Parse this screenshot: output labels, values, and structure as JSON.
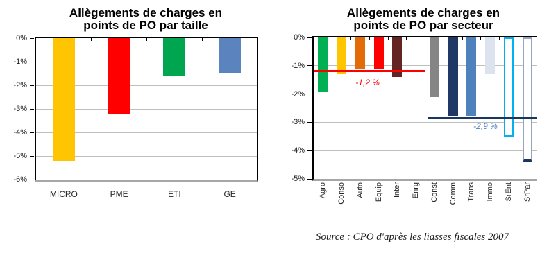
{
  "chart_data": [
    {
      "id": "par-taille",
      "type": "bar",
      "title": "Allègements de charges en points de PO par taille",
      "title_lines": [
        "Allègements de charges en",
        "points de PO par taille"
      ],
      "categories": [
        "MICRO",
        "PME",
        "ETI",
        "GE"
      ],
      "values": [
        -5.2,
        -3.2,
        -1.6,
        -1.5
      ],
      "bar_colors": [
        "#FFC500",
        "#FF0000",
        "#00A550",
        "#5B84BE"
      ],
      "bar_border_colors": [
        null,
        null,
        null,
        null
      ],
      "bar_border_bottom_colors": [
        null,
        null,
        null,
        null
      ],
      "ylim": [
        0,
        -6
      ],
      "ytick_labels": [
        "0%",
        "-1%",
        "-2%",
        "-3%",
        "-4%",
        "-5%",
        "-6%"
      ],
      "xlabel": "",
      "ylabel": "",
      "grid": true,
      "legend": false,
      "ref_lines": []
    },
    {
      "id": "par-secteur",
      "type": "bar",
      "title": "Allègements de charges en points de PO par secteur",
      "title_lines": [
        "Allègements de charges en",
        "points de PO par secteur"
      ],
      "categories": [
        "Agro",
        "Conso",
        "Auto",
        "Equip",
        "Inter",
        "Enrg",
        "Const",
        "Comm",
        "Trans",
        "Immo",
        "SrEnt",
        "SrPar"
      ],
      "values": [
        -1.9,
        -1.3,
        -1.1,
        -1.1,
        -1.4,
        0,
        -2.1,
        -2.8,
        -2.8,
        -1.3,
        -3.5,
        -4.4
      ],
      "bar_colors": [
        "#00B052",
        "#FFC500",
        "#E36C09",
        "#FF0000",
        "#632423",
        null,
        "#858585",
        "#1F3864",
        "#4F81BD",
        "#DCE3EF",
        "#FFFFFF",
        "#FFFFFF"
      ],
      "bar_border_colors": [
        null,
        null,
        null,
        null,
        null,
        null,
        null,
        null,
        null,
        null,
        "#00B0F0",
        "#95A5BD"
      ],
      "bar_border_bottom_colors": [
        null,
        null,
        null,
        null,
        null,
        null,
        null,
        null,
        null,
        null,
        null,
        "#17375E"
      ],
      "ylim": [
        0,
        -5
      ],
      "ytick_labels": [
        "0%",
        "-1%",
        "-2%",
        "-3%",
        "-4%",
        "-5%"
      ],
      "xlabel": "",
      "ylabel": "",
      "grid": true,
      "legend": false,
      "ref_lines": [
        {
          "value": -1.2,
          "label": "-1,2 %",
          "line_color": "#FF0000",
          "label_color": "#FF0000",
          "slot_span": [
            0,
            6
          ]
        },
        {
          "value": -2.85,
          "label": "-2,9 %",
          "line_color": "#17375E",
          "label_color": "#4F81BD",
          "slot_span": [
            6.15,
            12
          ]
        }
      ]
    }
  ],
  "source_note": "Source : CPO d'après les liasses fiscales 2007"
}
